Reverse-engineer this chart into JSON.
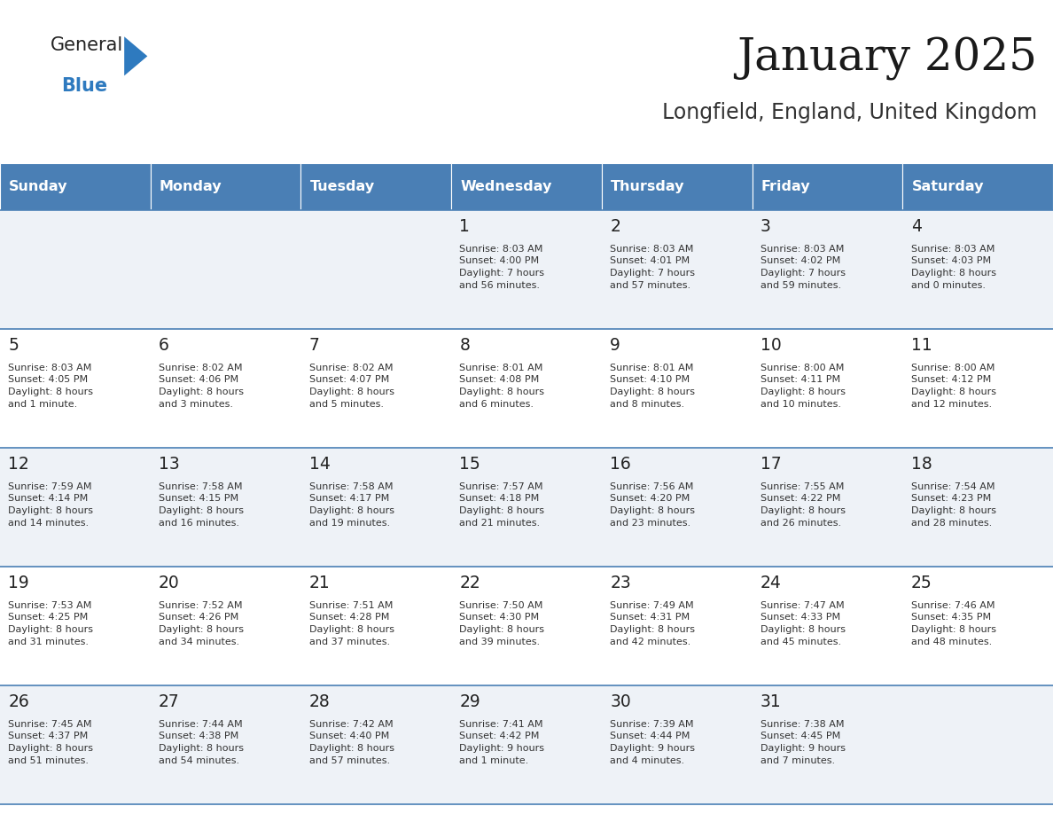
{
  "title": "January 2025",
  "subtitle": "Longfield, England, United Kingdom",
  "header_bg": "#4a7fb5",
  "header_text": "#ffffff",
  "row_bg_odd": "#eef2f7",
  "row_bg_even": "#ffffff",
  "cell_border": "#4a7fb5",
  "text_color": "#333333",
  "day_number_color": "#222222",
  "day_headers": [
    "Sunday",
    "Monday",
    "Tuesday",
    "Wednesday",
    "Thursday",
    "Friday",
    "Saturday"
  ],
  "logo_general_color": "#222222",
  "logo_blue_color": "#2e7abf",
  "logo_triangle_color": "#2e7abf",
  "days": [
    {
      "day": 1,
      "col": 3,
      "row": 0,
      "sunrise": "8:03 AM",
      "sunset": "4:00 PM",
      "daylight": "7 hours\nand 56 minutes."
    },
    {
      "day": 2,
      "col": 4,
      "row": 0,
      "sunrise": "8:03 AM",
      "sunset": "4:01 PM",
      "daylight": "7 hours\nand 57 minutes."
    },
    {
      "day": 3,
      "col": 5,
      "row": 0,
      "sunrise": "8:03 AM",
      "sunset": "4:02 PM",
      "daylight": "7 hours\nand 59 minutes."
    },
    {
      "day": 4,
      "col": 6,
      "row": 0,
      "sunrise": "8:03 AM",
      "sunset": "4:03 PM",
      "daylight": "8 hours\nand 0 minutes."
    },
    {
      "day": 5,
      "col": 0,
      "row": 1,
      "sunrise": "8:03 AM",
      "sunset": "4:05 PM",
      "daylight": "8 hours\nand 1 minute."
    },
    {
      "day": 6,
      "col": 1,
      "row": 1,
      "sunrise": "8:02 AM",
      "sunset": "4:06 PM",
      "daylight": "8 hours\nand 3 minutes."
    },
    {
      "day": 7,
      "col": 2,
      "row": 1,
      "sunrise": "8:02 AM",
      "sunset": "4:07 PM",
      "daylight": "8 hours\nand 5 minutes."
    },
    {
      "day": 8,
      "col": 3,
      "row": 1,
      "sunrise": "8:01 AM",
      "sunset": "4:08 PM",
      "daylight": "8 hours\nand 6 minutes."
    },
    {
      "day": 9,
      "col": 4,
      "row": 1,
      "sunrise": "8:01 AM",
      "sunset": "4:10 PM",
      "daylight": "8 hours\nand 8 minutes."
    },
    {
      "day": 10,
      "col": 5,
      "row": 1,
      "sunrise": "8:00 AM",
      "sunset": "4:11 PM",
      "daylight": "8 hours\nand 10 minutes."
    },
    {
      "day": 11,
      "col": 6,
      "row": 1,
      "sunrise": "8:00 AM",
      "sunset": "4:12 PM",
      "daylight": "8 hours\nand 12 minutes."
    },
    {
      "day": 12,
      "col": 0,
      "row": 2,
      "sunrise": "7:59 AM",
      "sunset": "4:14 PM",
      "daylight": "8 hours\nand 14 minutes."
    },
    {
      "day": 13,
      "col": 1,
      "row": 2,
      "sunrise": "7:58 AM",
      "sunset": "4:15 PM",
      "daylight": "8 hours\nand 16 minutes."
    },
    {
      "day": 14,
      "col": 2,
      "row": 2,
      "sunrise": "7:58 AM",
      "sunset": "4:17 PM",
      "daylight": "8 hours\nand 19 minutes."
    },
    {
      "day": 15,
      "col": 3,
      "row": 2,
      "sunrise": "7:57 AM",
      "sunset": "4:18 PM",
      "daylight": "8 hours\nand 21 minutes."
    },
    {
      "day": 16,
      "col": 4,
      "row": 2,
      "sunrise": "7:56 AM",
      "sunset": "4:20 PM",
      "daylight": "8 hours\nand 23 minutes."
    },
    {
      "day": 17,
      "col": 5,
      "row": 2,
      "sunrise": "7:55 AM",
      "sunset": "4:22 PM",
      "daylight": "8 hours\nand 26 minutes."
    },
    {
      "day": 18,
      "col": 6,
      "row": 2,
      "sunrise": "7:54 AM",
      "sunset": "4:23 PM",
      "daylight": "8 hours\nand 28 minutes."
    },
    {
      "day": 19,
      "col": 0,
      "row": 3,
      "sunrise": "7:53 AM",
      "sunset": "4:25 PM",
      "daylight": "8 hours\nand 31 minutes."
    },
    {
      "day": 20,
      "col": 1,
      "row": 3,
      "sunrise": "7:52 AM",
      "sunset": "4:26 PM",
      "daylight": "8 hours\nand 34 minutes."
    },
    {
      "day": 21,
      "col": 2,
      "row": 3,
      "sunrise": "7:51 AM",
      "sunset": "4:28 PM",
      "daylight": "8 hours\nand 37 minutes."
    },
    {
      "day": 22,
      "col": 3,
      "row": 3,
      "sunrise": "7:50 AM",
      "sunset": "4:30 PM",
      "daylight": "8 hours\nand 39 minutes."
    },
    {
      "day": 23,
      "col": 4,
      "row": 3,
      "sunrise": "7:49 AM",
      "sunset": "4:31 PM",
      "daylight": "8 hours\nand 42 minutes."
    },
    {
      "day": 24,
      "col": 5,
      "row": 3,
      "sunrise": "7:47 AM",
      "sunset": "4:33 PM",
      "daylight": "8 hours\nand 45 minutes."
    },
    {
      "day": 25,
      "col": 6,
      "row": 3,
      "sunrise": "7:46 AM",
      "sunset": "4:35 PM",
      "daylight": "8 hours\nand 48 minutes."
    },
    {
      "day": 26,
      "col": 0,
      "row": 4,
      "sunrise": "7:45 AM",
      "sunset": "4:37 PM",
      "daylight": "8 hours\nand 51 minutes."
    },
    {
      "day": 27,
      "col": 1,
      "row": 4,
      "sunrise": "7:44 AM",
      "sunset": "4:38 PM",
      "daylight": "8 hours\nand 54 minutes."
    },
    {
      "day": 28,
      "col": 2,
      "row": 4,
      "sunrise": "7:42 AM",
      "sunset": "4:40 PM",
      "daylight": "8 hours\nand 57 minutes."
    },
    {
      "day": 29,
      "col": 3,
      "row": 4,
      "sunrise": "7:41 AM",
      "sunset": "4:42 PM",
      "daylight": "9 hours\nand 1 minute."
    },
    {
      "day": 30,
      "col": 4,
      "row": 4,
      "sunrise": "7:39 AM",
      "sunset": "4:44 PM",
      "daylight": "9 hours\nand 4 minutes."
    },
    {
      "day": 31,
      "col": 5,
      "row": 4,
      "sunrise": "7:38 AM",
      "sunset": "4:45 PM",
      "daylight": "9 hours\nand 7 minutes."
    }
  ]
}
